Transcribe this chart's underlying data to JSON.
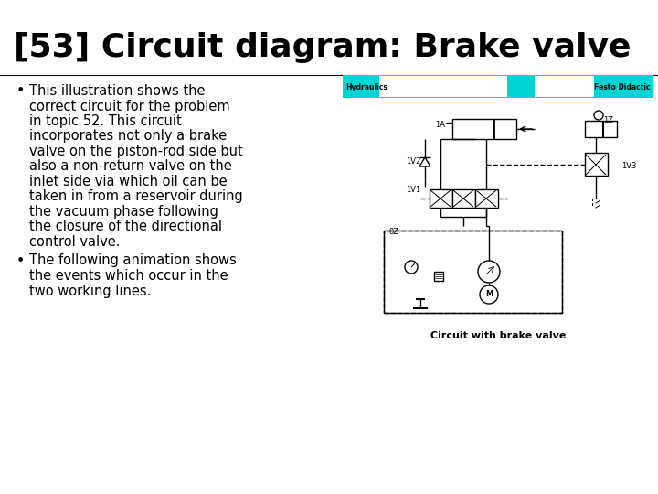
{
  "title": "[53] Circuit diagram: Brake valve",
  "title_fontsize": 26,
  "bg_color": "#ffffff",
  "bullet1_lines": [
    "This illustration shows the",
    "correct circuit for the problem",
    "in topic 52. This circuit",
    "incorporates not only a brake",
    "valve on the piston-rod side but",
    "also a non-return valve on the",
    "inlet side via which oil can be",
    "taken in from a reservoir during",
    "the vacuum phase following",
    "the closure of the directional",
    "control valve."
  ],
  "bullet2_lines": [
    "The following animation shows",
    "the events which occur in the",
    "two working lines."
  ],
  "bullet_fontsize": 10.5,
  "header_color": "#00d4d4",
  "header_text_left": "Hydraulics",
  "header_text_right": "Festo Didactic",
  "caption": "Circuit with brake valve"
}
